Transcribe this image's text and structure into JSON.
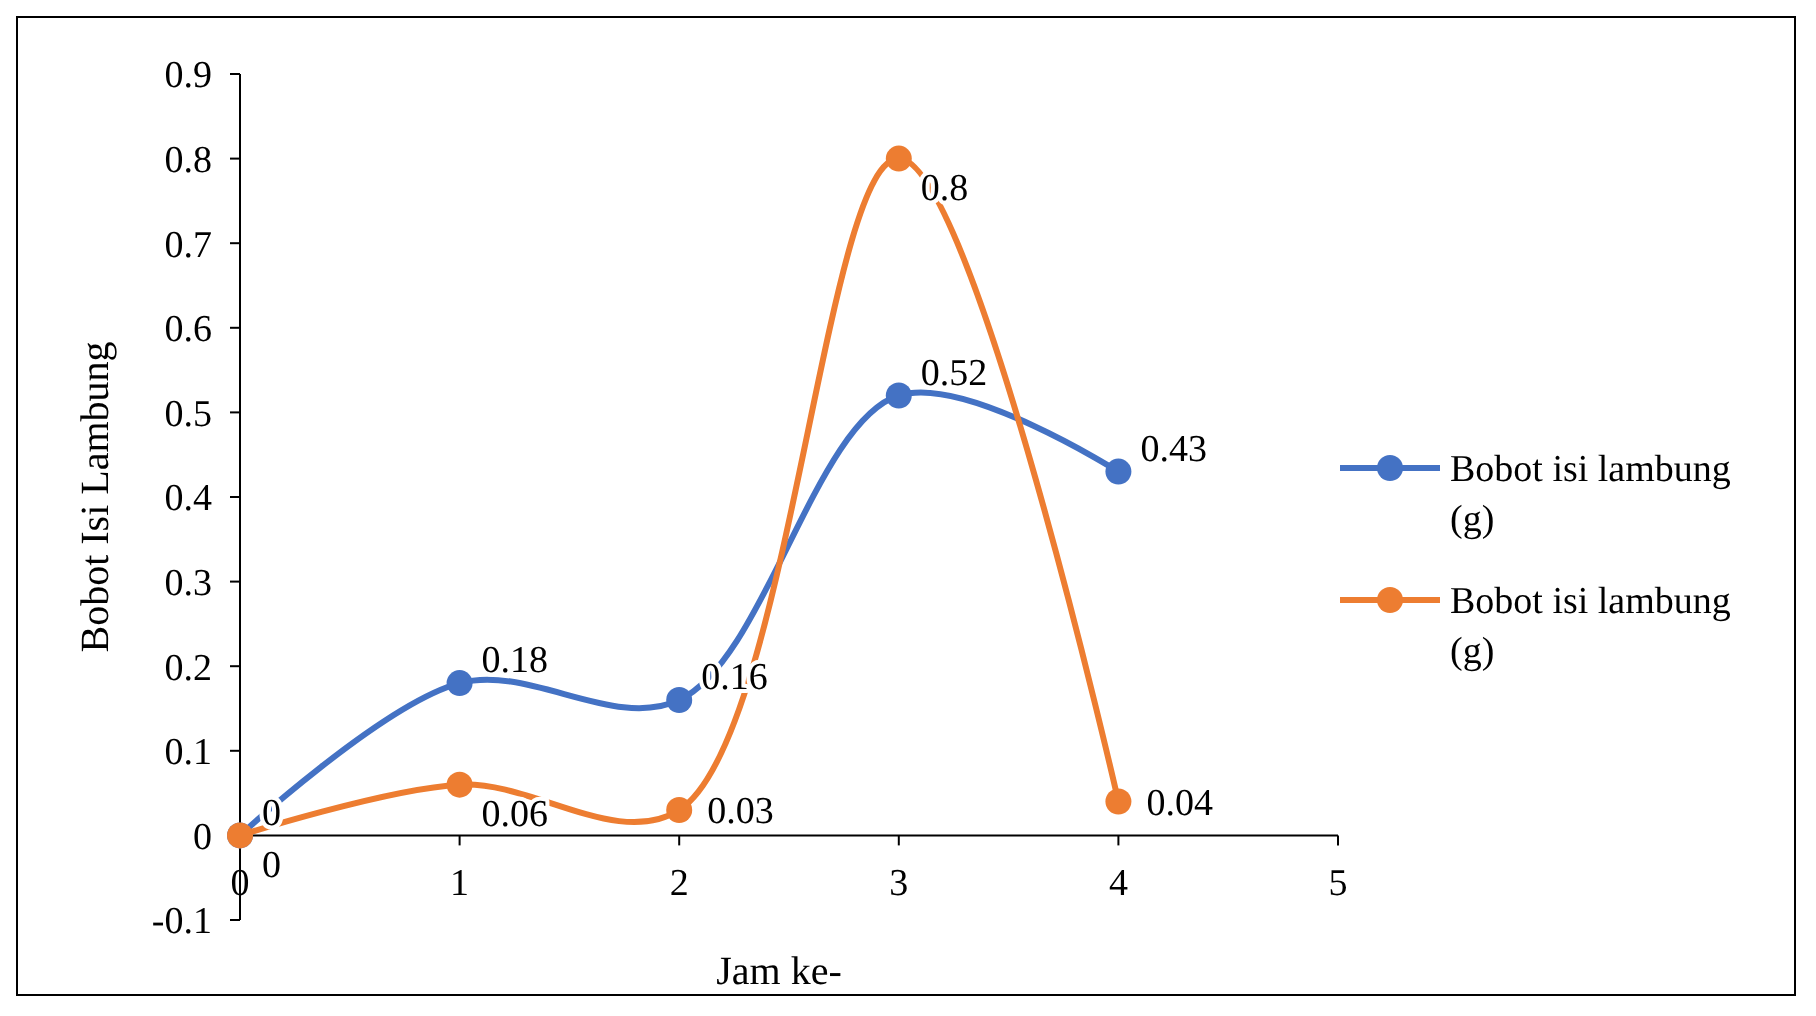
{
  "chart_data": {
    "type": "line",
    "xlabel": "Jam ke-",
    "ylabel": "Bobot Isi Lambung",
    "x": [
      0,
      1,
      2,
      3,
      4
    ],
    "series": [
      {
        "name": "Bobot isi lambung (g)",
        "color": "#4472c4",
        "values": [
          0,
          0.18,
          0.16,
          0.52,
          0.43
        ]
      },
      {
        "name": "Bobot isi lambung (g)",
        "color": "#ed7d31",
        "values": [
          0,
          0.06,
          0.03,
          0.8,
          0.04
        ]
      }
    ],
    "xlim": [
      0,
      5
    ],
    "xticks": [
      0,
      1,
      2,
      3,
      4,
      5
    ],
    "ylim": [
      -0.1,
      0.9
    ],
    "yticks": [
      -0.1,
      0,
      0.1,
      0.2,
      0.3,
      0.4,
      0.5,
      0.6,
      0.7,
      0.8,
      0.9
    ],
    "data_labels": true,
    "legend": "right",
    "marker": "circle",
    "line_style": "solid",
    "grid": false
  }
}
